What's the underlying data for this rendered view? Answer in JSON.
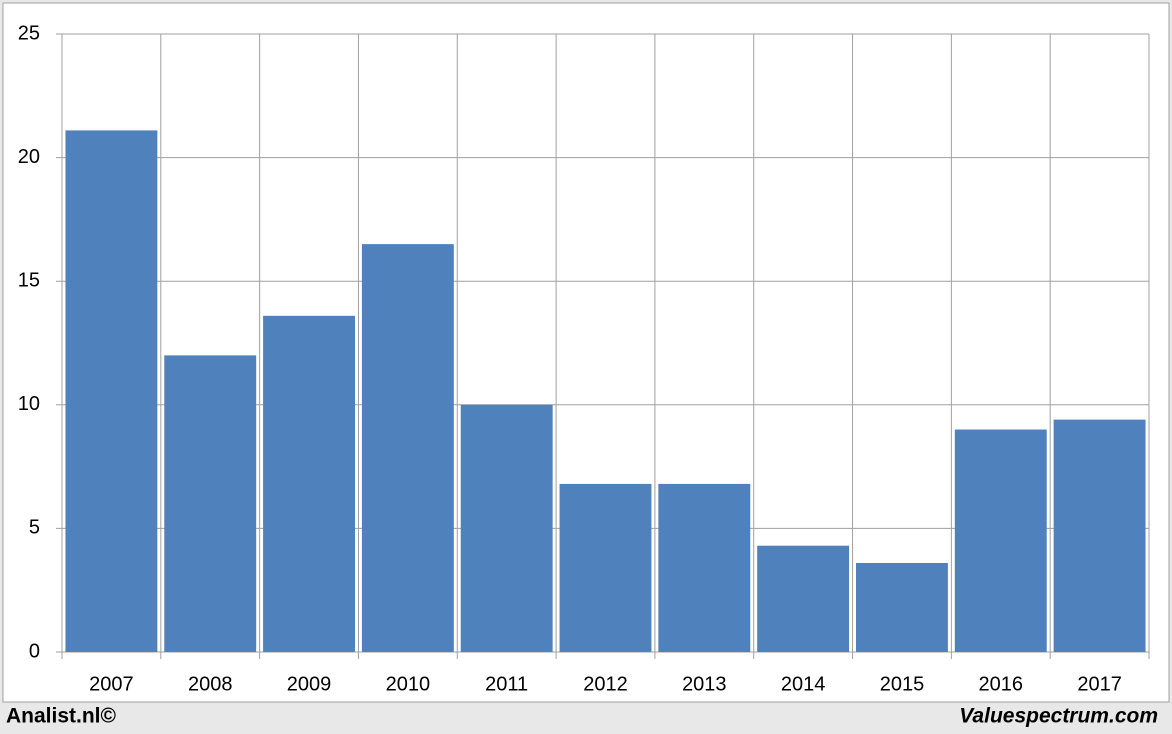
{
  "chart_data": {
    "type": "bar",
    "categories": [
      "2007",
      "2008",
      "2009",
      "2010",
      "2011",
      "2012",
      "2013",
      "2014",
      "2015",
      "2016",
      "2017"
    ],
    "values": [
      21.1,
      12,
      13.6,
      16.5,
      10,
      6.8,
      6.8,
      4.3,
      3.6,
      9,
      9.4
    ],
    "color": "#4f81bd",
    "ylim": [
      0,
      25
    ],
    "yticks": [
      0,
      5,
      10,
      15,
      20,
      25
    ],
    "grid": true,
    "footer_left": "Analist.nl©",
    "footer_right": "Valuespectrum.com"
  }
}
